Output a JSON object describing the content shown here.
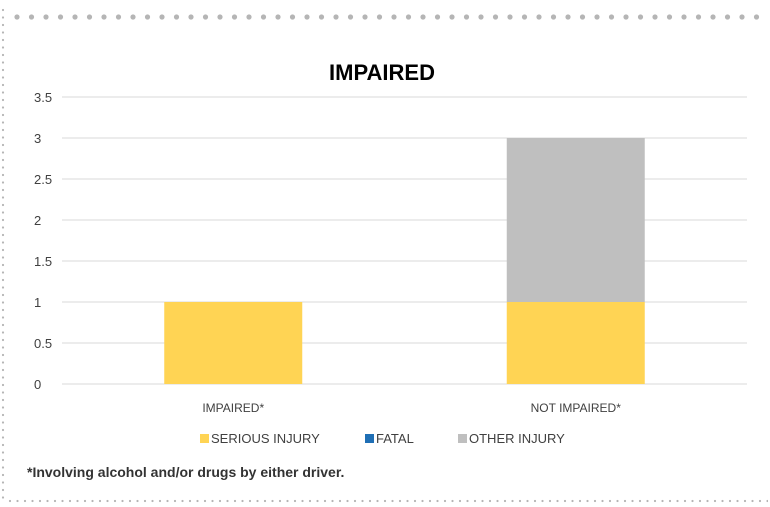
{
  "chart_data": {
    "type": "bar",
    "stacked": true,
    "title": "IMPAIRED",
    "categories": [
      "IMPAIRED*",
      "NOT IMPAIRED*"
    ],
    "series": [
      {
        "name": "SERIOUS INJURY",
        "values": [
          1,
          1
        ],
        "color": "#FFD454"
      },
      {
        "name": "FATAL",
        "values": [
          0,
          0
        ],
        "color": "#1F6FB5"
      },
      {
        "name": "OTHER INJURY",
        "values": [
          0,
          2
        ],
        "color": "#BFBFBF"
      }
    ],
    "ylim": [
      0,
      3.5
    ],
    "yticks": [
      "0",
      "0.5",
      "1",
      "1.5",
      "2",
      "2.5",
      "3",
      "3.5"
    ],
    "grid": true,
    "legend_position": "bottom"
  },
  "footnote": "*Involving alcohol and/or drugs by either driver.",
  "colors": {
    "frame_dots": "#B5B5B5",
    "gridline": "#D9D9D9",
    "axis_text": "#404040",
    "title": "#000000"
  }
}
